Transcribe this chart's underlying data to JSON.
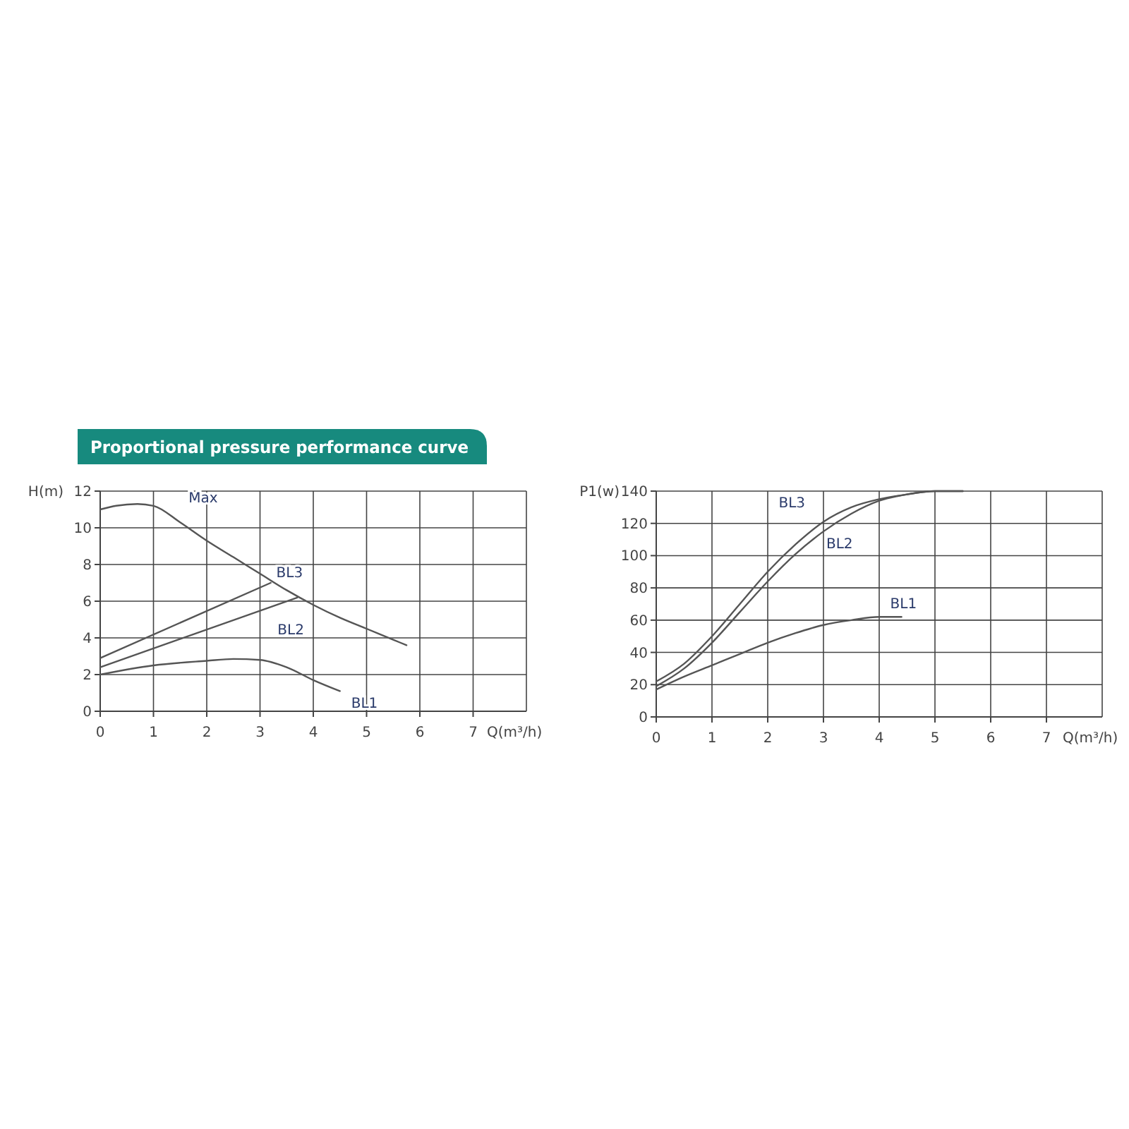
{
  "chart_data": [
    {
      "type": "line",
      "title": "Proportional pressure performance curve",
      "xlabel": "Q(m³/h)",
      "ylabel": "H(m)",
      "xlim": [
        0,
        8
      ],
      "ylim": [
        0,
        12
      ],
      "xticks": [
        0,
        1,
        2,
        3,
        4,
        5,
        6,
        7
      ],
      "yticks": [
        0,
        2,
        4,
        6,
        8,
        10,
        12
      ],
      "grid": true,
      "marker": "none",
      "line_style": "solid",
      "series": [
        {
          "name": "Max",
          "color": "#555555",
          "x": [
            0,
            0.3,
            0.7,
            1,
            1.5,
            2,
            2.5,
            3,
            3.5,
            4,
            4.5,
            5,
            5.5,
            5.75
          ],
          "values": [
            11,
            11.2,
            11.3,
            11.2,
            10.3,
            9.3,
            8.4,
            7.5,
            6.6,
            5.8,
            5.1,
            4.5,
            3.9,
            3.6
          ]
        },
        {
          "name": "BL3",
          "color": "#555555",
          "x": [
            0,
            3.2
          ],
          "values": [
            2.9,
            7
          ]
        },
        {
          "name": "BL2",
          "color": "#555555",
          "x": [
            0,
            3.7
          ],
          "values": [
            2.4,
            6.2
          ]
        },
        {
          "name": "BL1",
          "color": "#555555",
          "x": [
            0,
            1,
            2,
            2.5,
            3,
            3.5,
            4,
            4.5
          ],
          "values": [
            2,
            2.5,
            2.75,
            2.85,
            2.8,
            2.4,
            1.7,
            1.1
          ]
        }
      ]
    },
    {
      "type": "line",
      "xlabel": "Q(m³/h)",
      "ylabel": "P1(w)",
      "xlim": [
        0,
        8
      ],
      "ylim": [
        0,
        140
      ],
      "xticks": [
        0,
        1,
        2,
        3,
        4,
        5,
        6,
        7
      ],
      "yticks": [
        0,
        20,
        40,
        60,
        80,
        100,
        120,
        140
      ],
      "grid": true,
      "marker": "none",
      "line_style": "solid",
      "series": [
        {
          "name": "BL3",
          "color": "#555555",
          "x": [
            0,
            0.5,
            1,
            1.5,
            2,
            2.5,
            3,
            3.5,
            4,
            4.5,
            5,
            5.5
          ],
          "values": [
            22,
            33,
            50,
            70,
            90,
            107,
            121,
            130,
            135,
            138,
            140,
            140
          ]
        },
        {
          "name": "BL2",
          "color": "#555555",
          "x": [
            0,
            0.5,
            1,
            1.5,
            2,
            2.5,
            3,
            3.5,
            4,
            4.5,
            5,
            5.5
          ],
          "values": [
            19,
            30,
            46,
            65,
            84,
            101,
            115,
            126,
            134,
            138,
            140,
            140
          ]
        },
        {
          "name": "BL1",
          "color": "#555555",
          "x": [
            0,
            0.5,
            1,
            1.5,
            2,
            2.5,
            3,
            3.5,
            4,
            4.4
          ],
          "values": [
            17,
            25,
            32,
            39,
            46,
            52,
            57,
            60,
            62,
            62
          ]
        }
      ]
    }
  ]
}
